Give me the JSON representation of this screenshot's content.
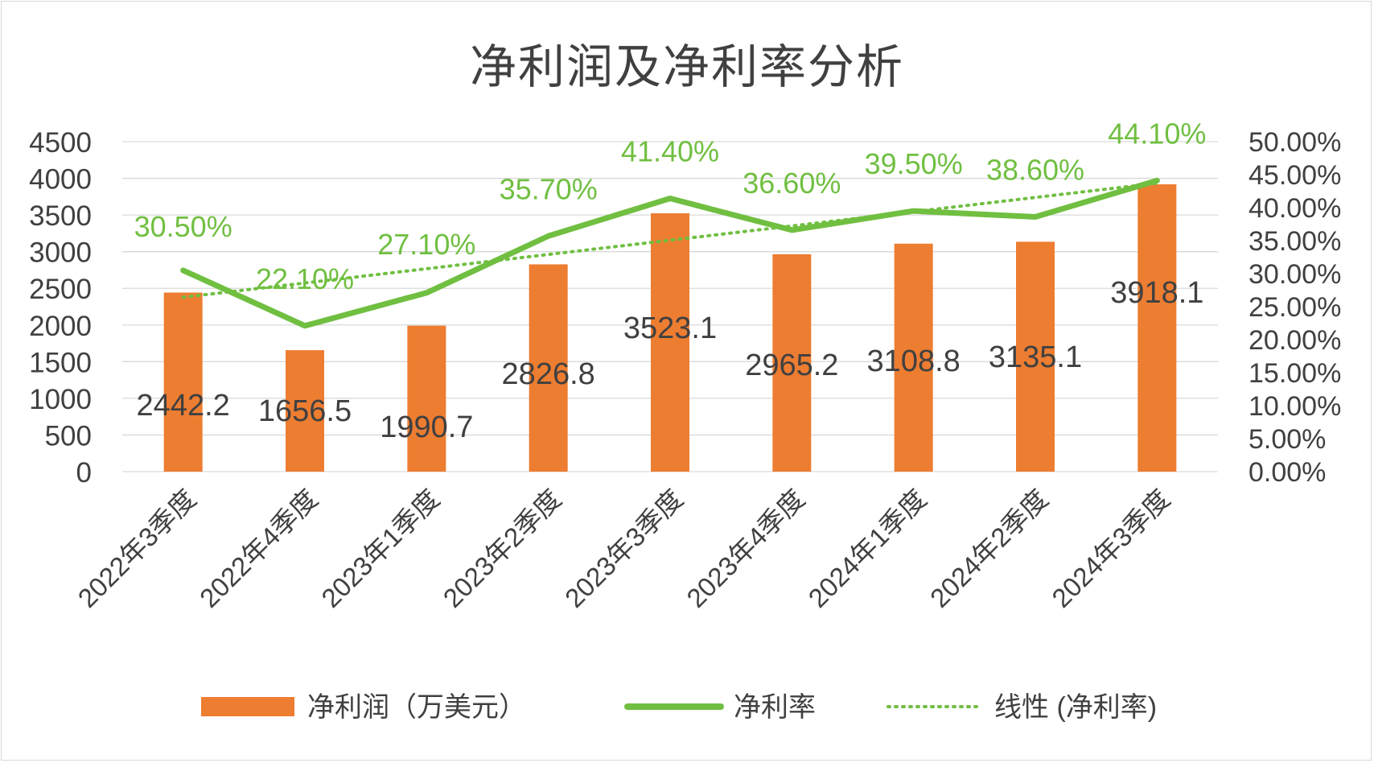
{
  "chart_data": {
    "type": "bar",
    "title": "净利润及净利率分析",
    "categories": [
      "2022年3季度",
      "2022年4季度",
      "2023年1季度",
      "2023年2季度",
      "2023年3季度",
      "2023年4季度",
      "2024年1季度",
      "2024年2季度",
      "2024年3季度"
    ],
    "series": [
      {
        "name": "净利润（万美元）",
        "type": "bar",
        "axis": "left",
        "color": "#ed7d31",
        "values": [
          2442.2,
          1656.5,
          1990.7,
          2826.8,
          3523.1,
          2965.2,
          3108.8,
          3135.1,
          3918.1
        ],
        "labels": [
          "2442.2",
          "1656.5",
          "1990.7",
          "2826.8",
          "3523.1",
          "2965.2",
          "3108.8",
          "3135.1",
          "3918.1"
        ]
      },
      {
        "name": "净利率",
        "type": "line",
        "axis": "right",
        "color": "#70bf41",
        "values": [
          30.5,
          22.1,
          27.1,
          35.7,
          41.4,
          36.6,
          39.5,
          38.6,
          44.1
        ],
        "labels": [
          "30.50%",
          "22.10%",
          "27.10%",
          "35.70%",
          "41.40%",
          "36.60%",
          "39.50%",
          "38.60%",
          "44.10%"
        ]
      },
      {
        "name": "线性 (净利率)",
        "type": "trendline",
        "axis": "right",
        "color": "#70bf41",
        "style": "dotted"
      }
    ],
    "left_axis": {
      "ylim": [
        0,
        4500
      ],
      "ticks": [
        "0",
        "500",
        "1000",
        "1500",
        "2000",
        "2500",
        "3000",
        "3500",
        "4000",
        "4500"
      ]
    },
    "right_axis": {
      "ylim": [
        0,
        50
      ],
      "ticks": [
        "0.00%",
        "5.00%",
        "10.00%",
        "15.00%",
        "20.00%",
        "25.00%",
        "30.00%",
        "35.00%",
        "40.00%",
        "45.00%",
        "50.00%"
      ]
    },
    "grid": true,
    "legend_position": "bottom"
  }
}
